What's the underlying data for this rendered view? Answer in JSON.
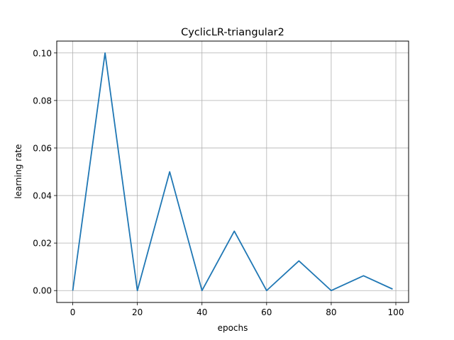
{
  "chart_data": {
    "type": "line",
    "title": "CyclicLR-triangular2",
    "xlabel": "epochs",
    "ylabel": "learning rate",
    "xlim": [
      -4.95,
      103.95
    ],
    "ylim": [
      -0.005,
      0.105
    ],
    "xticks": [
      0,
      20,
      40,
      60,
      80,
      100
    ],
    "xtick_labels": [
      "0",
      "20",
      "40",
      "60",
      "80",
      "100"
    ],
    "yticks": [
      0.0,
      0.02,
      0.04,
      0.06,
      0.08,
      0.1
    ],
    "ytick_labels": [
      "0.00",
      "0.02",
      "0.04",
      "0.06",
      "0.08",
      "0.10"
    ],
    "grid": true,
    "legend": null,
    "series": [
      {
        "name": "learning rate",
        "color": "#1f77b4",
        "x": [
          0,
          10,
          20,
          30,
          40,
          50,
          60,
          70,
          80,
          90,
          99
        ],
        "values": [
          0.0,
          0.1,
          0.0,
          0.05,
          0.0,
          0.025,
          0.0,
          0.0125,
          0.0,
          0.00625,
          0.000625
        ]
      }
    ]
  }
}
